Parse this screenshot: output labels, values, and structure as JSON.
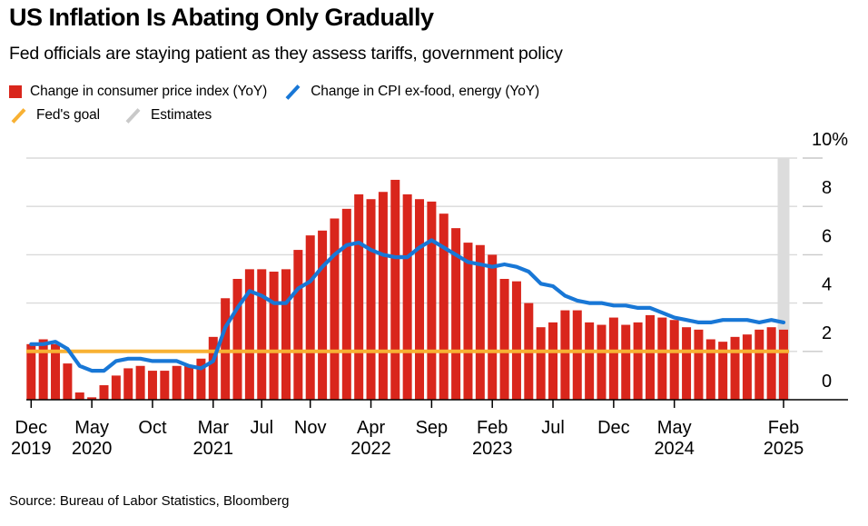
{
  "header": {
    "title": "US Inflation Is Abating Only Gradually",
    "subtitle": "Fed officials are staying patient as they assess tariffs, government policy"
  },
  "legend": {
    "items": [
      {
        "label": "Change in consumer price index (YoY)",
        "swatch": "square",
        "color": "#d9261c"
      },
      {
        "label": "Change in CPI ex-food, energy (YoY)",
        "swatch": "slash",
        "color": "#1877d6"
      },
      {
        "label": "Fed's goal",
        "swatch": "slash",
        "color": "#f8b133"
      },
      {
        "label": "Estimates",
        "swatch": "slash",
        "color": "#c9c9c9"
      }
    ]
  },
  "source": "Source: Bureau of Labor Statistics, Bloomberg",
  "chart_data": {
    "type": "bar+line",
    "title": "US Inflation Is Abating Only Gradually",
    "subtitle": "Fed officials are staying patient as they assess tariffs, government policy",
    "unit": "%",
    "ylim": [
      0,
      10
    ],
    "grid": true,
    "legend_position": "top",
    "categories": [
      "Dec 2019",
      "Jan 2020",
      "Feb 2020",
      "Mar 2020",
      "Apr 2020",
      "May 2020",
      "Jun 2020",
      "Jul 2020",
      "Aug 2020",
      "Sep 2020",
      "Oct 2020",
      "Nov 2020",
      "Dec 2020",
      "Jan 2021",
      "Feb 2021",
      "Mar 2021",
      "Apr 2021",
      "May 2021",
      "Jun 2021",
      "Jul 2021",
      "Aug 2021",
      "Sep 2021",
      "Oct 2021",
      "Nov 2021",
      "Dec 2021",
      "Jan 2022",
      "Feb 2022",
      "Mar 2022",
      "Apr 2022",
      "May 2022",
      "Jun 2022",
      "Jul 2022",
      "Aug 2022",
      "Sep 2022",
      "Oct 2022",
      "Nov 2022",
      "Dec 2022",
      "Jan 2023",
      "Feb 2023",
      "Mar 2023",
      "Apr 2023",
      "May 2023",
      "Jun 2023",
      "Jul 2023",
      "Aug 2023",
      "Sep 2023",
      "Oct 2023",
      "Nov 2023",
      "Dec 2023",
      "Jan 2024",
      "Feb 2024",
      "Mar 2024",
      "Apr 2024",
      "May 2024",
      "Jun 2024",
      "Jul 2024",
      "Aug 2024",
      "Sep 2024",
      "Oct 2024",
      "Nov 2024",
      "Dec 2024",
      "Jan 2025",
      "Feb 2025"
    ],
    "series": [
      {
        "name": "Change in consumer price index (YoY)",
        "kind": "bar",
        "color": "#d9261c",
        "values": [
          2.3,
          2.5,
          2.3,
          1.5,
          0.3,
          0.1,
          0.6,
          1.0,
          1.3,
          1.4,
          1.2,
          1.2,
          1.4,
          1.4,
          1.7,
          2.6,
          4.2,
          5.0,
          5.4,
          5.4,
          5.3,
          5.4,
          6.2,
          6.8,
          7.0,
          7.5,
          7.9,
          8.5,
          8.3,
          8.6,
          9.1,
          8.5,
          8.3,
          8.2,
          7.7,
          7.1,
          6.5,
          6.4,
          6.0,
          5.0,
          4.9,
          4.0,
          3.0,
          3.2,
          3.7,
          3.7,
          3.2,
          3.1,
          3.4,
          3.1,
          3.2,
          3.5,
          3.4,
          3.3,
          3.0,
          2.9,
          2.5,
          2.4,
          2.6,
          2.7,
          2.9,
          3.0,
          2.9
        ]
      },
      {
        "name": "Change in CPI ex-food, energy (YoY)",
        "kind": "line",
        "color": "#1877d6",
        "values": [
          2.3,
          2.3,
          2.4,
          2.1,
          1.4,
          1.2,
          1.2,
          1.6,
          1.7,
          1.7,
          1.6,
          1.6,
          1.6,
          1.4,
          1.3,
          1.6,
          3.0,
          3.8,
          4.5,
          4.3,
          4.0,
          4.0,
          4.6,
          4.9,
          5.5,
          6.0,
          6.4,
          6.5,
          6.2,
          6.0,
          5.9,
          5.9,
          6.3,
          6.6,
          6.3,
          6.0,
          5.7,
          5.6,
          5.5,
          5.6,
          5.5,
          5.3,
          4.8,
          4.7,
          4.3,
          4.1,
          4.0,
          4.0,
          3.9,
          3.9,
          3.8,
          3.8,
          3.6,
          3.4,
          3.3,
          3.2,
          3.2,
          3.3,
          3.3,
          3.3,
          3.2,
          3.3,
          3.2
        ]
      }
    ],
    "fed_goal": {
      "label": "Fed's goal",
      "value": 2,
      "color": "#f8b133"
    },
    "estimates": {
      "label": "Estimates",
      "category": "Feb 2025",
      "band_color": "#dcdcdc"
    },
    "y_axis": {
      "tick_values": [
        0,
        2,
        4,
        6,
        8,
        10
      ],
      "tick_labels": [
        "0",
        "2",
        "4",
        "6",
        "8",
        "10%"
      ]
    },
    "x_ticks": [
      {
        "index": 0,
        "month": "Dec",
        "year": "2019"
      },
      {
        "index": 5,
        "month": "May",
        "year": "2020"
      },
      {
        "index": 10,
        "month": "Oct",
        "year": ""
      },
      {
        "index": 15,
        "month": "Mar",
        "year": "2021"
      },
      {
        "index": 19,
        "month": "Jul",
        "year": ""
      },
      {
        "index": 23,
        "month": "Nov",
        "year": ""
      },
      {
        "index": 28,
        "month": "Apr",
        "year": "2022"
      },
      {
        "index": 33,
        "month": "Sep",
        "year": ""
      },
      {
        "index": 38,
        "month": "Feb",
        "year": "2023"
      },
      {
        "index": 43,
        "month": "Jul",
        "year": ""
      },
      {
        "index": 48,
        "month": "Dec",
        "year": ""
      },
      {
        "index": 53,
        "month": "May",
        "year": "2024"
      },
      {
        "index": 62,
        "month": "Feb",
        "year": "2025"
      }
    ]
  }
}
